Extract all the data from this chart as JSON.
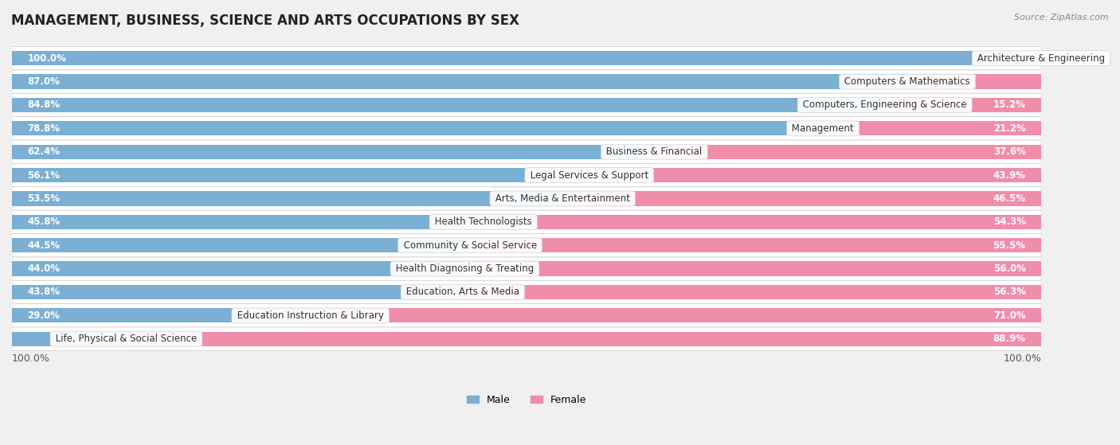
{
  "title": "MANAGEMENT, BUSINESS, SCIENCE AND ARTS OCCUPATIONS BY SEX",
  "source": "Source: ZipAtlas.com",
  "categories": [
    "Architecture & Engineering",
    "Computers & Mathematics",
    "Computers, Engineering & Science",
    "Management",
    "Business & Financial",
    "Legal Services & Support",
    "Arts, Media & Entertainment",
    "Health Technologists",
    "Community & Social Service",
    "Health Diagnosing & Treating",
    "Education, Arts & Media",
    "Education Instruction & Library",
    "Life, Physical & Social Science"
  ],
  "male": [
    100.0,
    87.0,
    84.8,
    78.8,
    62.4,
    56.1,
    53.5,
    45.8,
    44.5,
    44.0,
    43.8,
    29.0,
    11.1
  ],
  "female": [
    0.0,
    13.0,
    15.2,
    21.2,
    37.6,
    43.9,
    46.5,
    54.3,
    55.5,
    56.0,
    56.3,
    71.0,
    88.9
  ],
  "male_color": "#7bafd4",
  "female_color": "#f08dab",
  "bg_color": "#f0f0f0",
  "row_bg_even": "#f8f8f8",
  "row_bg_odd": "#ffffff",
  "title_fontsize": 12,
  "label_fontsize": 8.5,
  "bar_height": 0.62,
  "male_label_inside_threshold": 15,
  "female_label_inside_threshold": 15
}
